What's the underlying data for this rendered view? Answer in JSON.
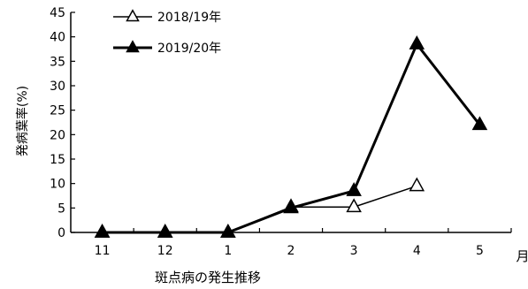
{
  "chart_data": {
    "type": "line",
    "categories": [
      "11",
      "12",
      "1",
      "2",
      "3",
      "4",
      "5"
    ],
    "xlabel": "斑点病の発生推移",
    "x_unit": "月",
    "ylabel": "発病葉率(%)",
    "ylim": [
      0,
      45
    ],
    "yticks": [
      "0",
      "5",
      "10",
      "15",
      "20",
      "25",
      "30",
      "35",
      "40",
      "45"
    ],
    "grid": false,
    "legend_position": "top-left",
    "series": [
      {
        "name": "2018/19年",
        "marker": "open-triangle",
        "color": "#000000",
        "values": [
          0,
          0,
          0,
          5.2,
          5.2,
          9.5,
          null
        ]
      },
      {
        "name": "2019/20年",
        "marker": "filled-triangle",
        "color": "#000000",
        "values": [
          0,
          0,
          0,
          5.0,
          8.5,
          38.5,
          22.0
        ]
      }
    ]
  }
}
